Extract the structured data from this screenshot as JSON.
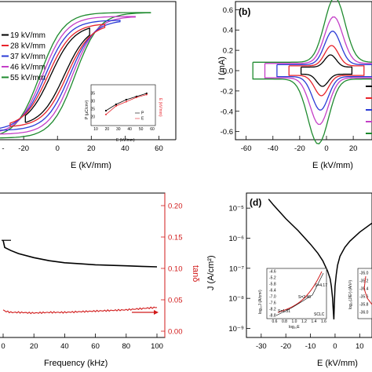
{
  "chart_data": [
    {
      "type": "line",
      "panel": "a",
      "title": "",
      "xlabel": "E (kV/mm)",
      "xticks": [
        "-20",
        "0",
        "20",
        "40",
        "60"
      ],
      "xlim": [
        -34,
        70
      ],
      "colors": [
        "#000000",
        "#e8242c",
        "#2b3bd6",
        "#c43fc7",
        "#1e8a2e"
      ],
      "series": [
        {
          "name": "19 kV/mm",
          "Emax": 19
        },
        {
          "name": "28 kV/mm",
          "Emax": 28
        },
        {
          "name": "37 kV/mm",
          "Emax": 37
        },
        {
          "name": "46 kV/mm",
          "Emax": 46
        },
        {
          "name": "55 kV/mm",
          "Emax": 55
        }
      ],
      "inset": {
        "ylabel": "P (μC/cm²)",
        "y2label": "E (kV/mm)",
        "xlabel": "E (kV/mm)",
        "yticks": [
          "20",
          "25",
          "30",
          "35"
        ],
        "xticks": [
          "10",
          "20",
          "30",
          "40",
          "50",
          "60"
        ],
        "legend": [
          "P",
          "E"
        ],
        "x": [
          19,
          28,
          37,
          46,
          55
        ],
        "P": [
          24,
          28,
          31,
          33,
          35
        ],
        "Ec": [
          5,
          11,
          14,
          17,
          19
        ]
      }
    },
    {
      "type": "line",
      "panel": "b",
      "label": "(b)",
      "xlabel": "E (kV/mm)",
      "ylabel": "I (mA)",
      "xticks": [
        "-60",
        "-40",
        "-20",
        "0",
        "20"
      ],
      "yticks": [
        "0.6",
        "0.4",
        "0.2",
        "0.0",
        "-0.2",
        "-0.4",
        "-0.6"
      ],
      "xlim": [
        -68,
        34
      ],
      "ylim": [
        -0.68,
        0.68
      ],
      "colors": [
        "#000000",
        "#e8242c",
        "#2b3bd6",
        "#c43fc7",
        "#1e8a2e"
      ],
      "series": [
        {
          "Emax": 19,
          "peak": 0.12
        },
        {
          "Emax": 28,
          "peak": 0.2
        },
        {
          "Emax": 37,
          "peak": 0.33
        },
        {
          "Emax": 46,
          "peak": 0.46
        },
        {
          "Emax": 55,
          "peak": 0.64
        }
      ]
    },
    {
      "type": "line",
      "panel": "c",
      "xlabel": "Frequency (kHz)",
      "y2label": "tanδ",
      "xticks": [
        "0",
        "20",
        "40",
        "60",
        "80",
        "100"
      ],
      "y2ticks": [
        "0.20",
        "0.15",
        "0.10",
        "0.05",
        "0.00"
      ],
      "xlim": [
        0,
        100
      ],
      "y2lim": [
        -0.01,
        0.22
      ],
      "series": [
        {
          "name": "permittivity",
          "color": "#000000",
          "x": [
            0,
            1,
            5,
            10,
            20,
            30,
            40,
            50,
            60,
            70,
            80,
            90,
            100
          ],
          "relative": [
            1.0,
            0.93,
            0.9,
            0.87,
            0.83,
            0.8,
            0.78,
            0.77,
            0.76,
            0.755,
            0.75,
            0.745,
            0.74
          ]
        },
        {
          "name": "tanδ",
          "color": "#d11a1a",
          "x": [
            0,
            1,
            5,
            10,
            20,
            30,
            40,
            50,
            60,
            70,
            80,
            90,
            100
          ],
          "y": [
            0.034,
            0.032,
            0.03,
            0.03,
            0.029,
            0.03,
            0.03,
            0.031,
            0.032,
            0.033,
            0.034,
            0.036,
            0.038
          ]
        }
      ]
    },
    {
      "type": "line",
      "panel": "d",
      "label": "(d)",
      "xlabel": "E (kV/mm)",
      "ylabel": "J (A/cm²)",
      "xticks": [
        "-30",
        "-20",
        "-10",
        "0",
        "10"
      ],
      "yticks": [
        "10⁻⁵",
        "10⁻⁶",
        "10⁻⁷",
        "10⁻⁸",
        "10⁻⁹"
      ],
      "xlim": [
        -36,
        15
      ],
      "ylog": [
        -9.3,
        -4.5
      ],
      "series": [
        {
          "name": "J",
          "color": "#000000",
          "x": [
            -27,
            -25,
            -20,
            -15,
            -10,
            -7,
            -5,
            -3,
            -2,
            -1.5,
            -1,
            -0.8,
            -0.5,
            -0.3,
            0,
            0.5,
            1,
            2,
            4,
            6,
            10,
            15
          ],
          "logJ": [
            -4.7,
            -4.9,
            -5.35,
            -5.75,
            -6.2,
            -6.5,
            -6.75,
            -7.1,
            -7.35,
            -7.6,
            -8.0,
            -8.3,
            -8.7,
            -8.2,
            -7.6,
            -7.2,
            -6.9,
            -6.6,
            -6.3,
            -6.1,
            -5.8,
            -5.5
          ]
        }
      ],
      "inset_left": {
        "ylabel": "log₁₀J (A/cm²)",
        "xlabel": "log₁₀E",
        "ylim": [
          -8.8,
          -4.6
        ],
        "yticks": [
          "-4.6",
          "-5.2",
          "-5.8",
          "-6.4",
          "-7.0",
          "-7.6",
          "-8.2",
          "-8.8"
        ],
        "xticks": [
          "0.6",
          "0.8",
          "1.0",
          "1.2",
          "1.4",
          "1.6"
        ],
        "annotations": [
          "S=4.17",
          "S=2.46",
          "S=1.31",
          "SCLC"
        ]
      },
      "inset_right": {
        "ylabel": "log₁₀(J/E²) (A/V²)",
        "yticks": [
          "-35.0",
          "-35.2",
          "-35.4",
          "-35.6",
          "-35.8",
          "-36.0"
        ]
      }
    }
  ]
}
